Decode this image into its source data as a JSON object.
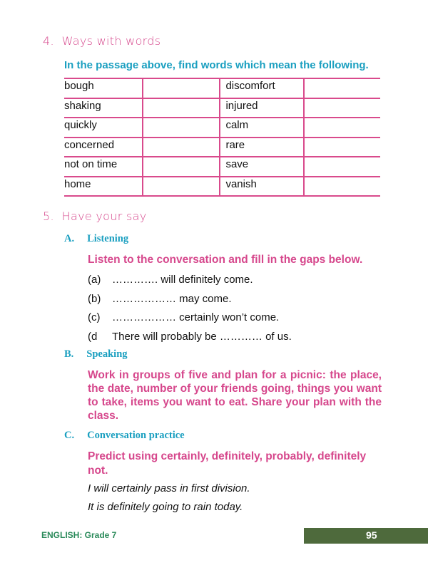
{
  "section4": {
    "number": "4.",
    "title": "Ways with words",
    "instruction": "In the passage above, find words which mean the following.",
    "rows": [
      [
        "bough",
        "discomfort"
      ],
      [
        "shaking",
        "injured"
      ],
      [
        "quickly",
        "calm"
      ],
      [
        "concerned",
        "rare"
      ],
      [
        "not on time",
        "save"
      ],
      [
        "home",
        "vanish"
      ]
    ]
  },
  "section5": {
    "number": "5.",
    "title": "Have your say",
    "A": {
      "letter": "A.",
      "title": "Listening",
      "instruction": "Listen to the conversation and fill in the gaps below.",
      "items": [
        {
          "label": "(a)",
          "text": "…………. will definitely come."
        },
        {
          "label": "(b)",
          "text": "……………… may come."
        },
        {
          "label": "(c)",
          "text": "……………… certainly won’t come."
        },
        {
          "label": "(d",
          "text": "There will probably be ………… of us."
        }
      ]
    },
    "B": {
      "letter": "B.",
      "title": "Speaking",
      "instruction": "Work in groups of five and plan for a picnic: the place, the date, number of your friends going, things you want to take, items you want to eat. Share your plan with the class."
    },
    "C": {
      "letter": "C.",
      "title": "Conversation practice",
      "instruction": "Predict using certainly, definitely, probably, definitely not.",
      "examples": [
        "I will certainly pass in first division.",
        "It is definitely going to rain today."
      ]
    }
  },
  "footer": {
    "book": "ENGLISH: Grade 7",
    "page": "95"
  }
}
